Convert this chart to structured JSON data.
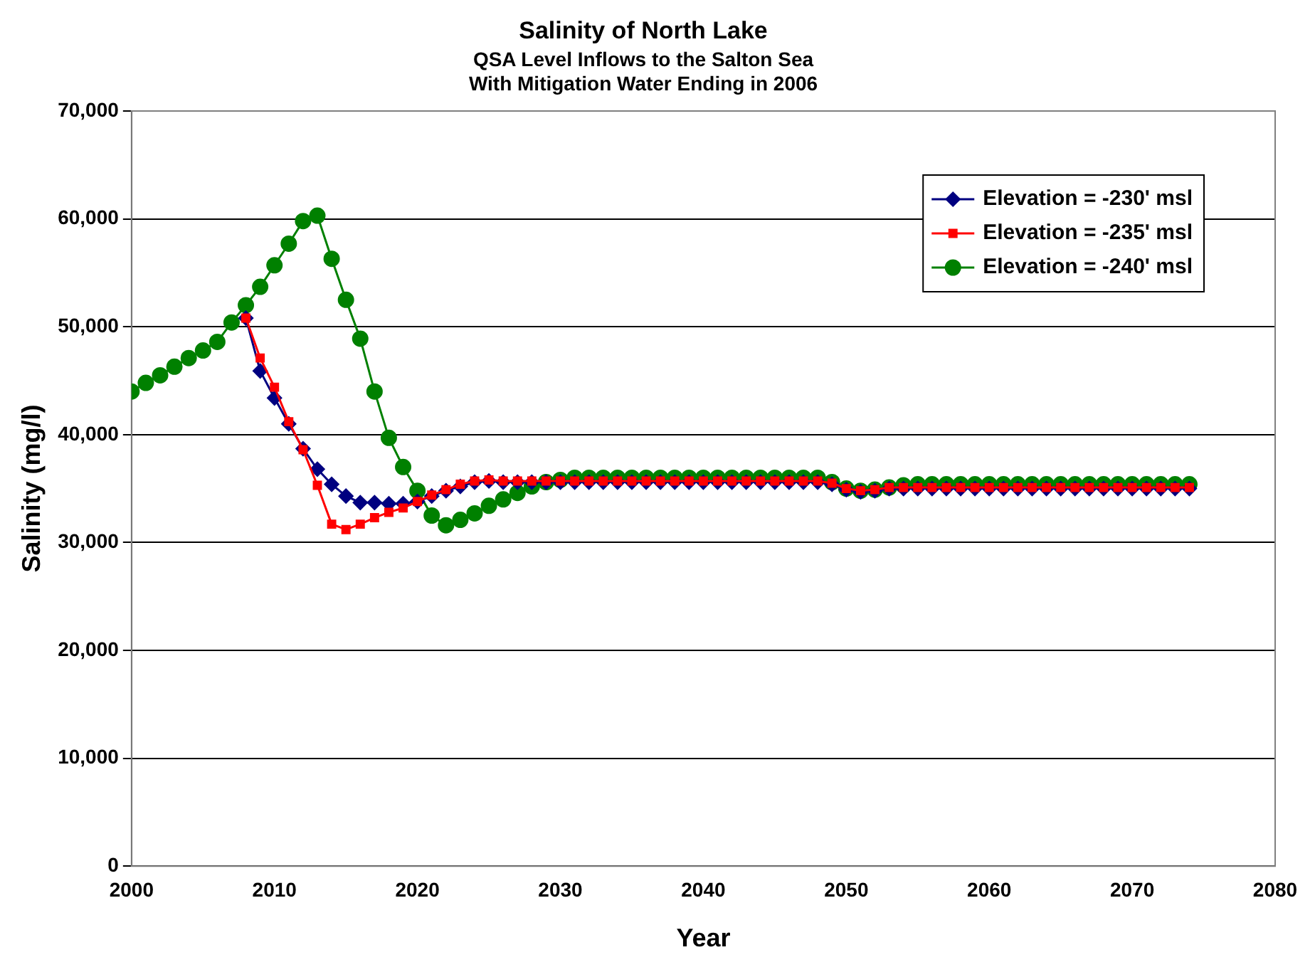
{
  "chart_data": {
    "type": "line",
    "title": "Salinity of North Lake",
    "subtitle": "QSA Level Inflows to the Salton Sea\nWith Mitigation Water Ending in 2006",
    "xlabel": "Year",
    "ylabel": "Salinity (mg/l)",
    "xlim": [
      2000,
      2080
    ],
    "xticks": [
      2000,
      2010,
      2020,
      2030,
      2040,
      2050,
      2060,
      2070,
      2080
    ],
    "ylim": [
      0,
      70000
    ],
    "yticks": [
      0,
      {
        "value": 10000,
        "label": "10,000"
      },
      {
        "value": 20000,
        "label": "20,000"
      },
      {
        "value": 30000,
        "label": "30,000"
      },
      {
        "value": 40000,
        "label": "40,000"
      },
      {
        "value": 50000,
        "label": "50,000"
      },
      {
        "value": 60000,
        "label": "60,000"
      },
      {
        "value": 70000,
        "label": "70,000"
      }
    ],
    "grid": "y",
    "legend": "top right",
    "series": [
      {
        "name": "Elevation = -230' msl",
        "color": "#000080",
        "marker": "diamond",
        "x": [
          2008,
          2009,
          2010,
          2011,
          2012,
          2013,
          2014,
          2015,
          2016,
          2017,
          2018,
          2019,
          2020,
          2021,
          2022,
          2023,
          2024,
          2025,
          2026,
          2027,
          2028,
          2029,
          2030,
          2031,
          2032,
          2033,
          2034,
          2035,
          2036,
          2037,
          2038,
          2039,
          2040,
          2041,
          2042,
          2043,
          2044,
          2045,
          2046,
          2047,
          2048,
          2049,
          2050,
          2051,
          2052,
          2053,
          2054,
          2055,
          2056,
          2057,
          2058,
          2059,
          2060,
          2061,
          2062,
          2063,
          2064,
          2065,
          2066,
          2067,
          2068,
          2069,
          2070,
          2071,
          2072,
          2073,
          2074
        ],
        "values": [
          50800,
          45900,
          43400,
          41000,
          38700,
          36800,
          35400,
          34300,
          33700,
          33700,
          33600,
          33600,
          33800,
          34300,
          34800,
          35200,
          35600,
          35700,
          35600,
          35600,
          35600,
          35600,
          35600,
          35600,
          35600,
          35600,
          35600,
          35600,
          35600,
          35600,
          35600,
          35600,
          35600,
          35600,
          35600,
          35600,
          35600,
          35600,
          35600,
          35600,
          35600,
          35400,
          34900,
          34700,
          34800,
          35000,
          35000,
          35000,
          35000,
          35000,
          35000,
          35000,
          35000,
          35000,
          35000,
          35000,
          35000,
          35000,
          35000,
          35000,
          35000,
          35000,
          35000,
          35000,
          35000,
          35000,
          35000
        ]
      },
      {
        "name": "Elevation = -235' msl",
        "color": "#ff0000",
        "marker": "square",
        "x": [
          2008,
          2009,
          2010,
          2011,
          2012,
          2013,
          2014,
          2015,
          2016,
          2017,
          2018,
          2019,
          2020,
          2021,
          2022,
          2023,
          2024,
          2025,
          2026,
          2027,
          2028,
          2029,
          2030,
          2031,
          2032,
          2033,
          2034,
          2035,
          2036,
          2037,
          2038,
          2039,
          2040,
          2041,
          2042,
          2043,
          2044,
          2045,
          2046,
          2047,
          2048,
          2049,
          2050,
          2051,
          2052,
          2053,
          2054,
          2055,
          2056,
          2057,
          2058,
          2059,
          2060,
          2061,
          2062,
          2063,
          2064,
          2065,
          2066,
          2067,
          2068,
          2069,
          2070,
          2071,
          2072,
          2073,
          2074
        ],
        "values": [
          50800,
          47100,
          44400,
          41200,
          38600,
          35300,
          31700,
          31200,
          31700,
          32300,
          32800,
          33200,
          33800,
          34400,
          34900,
          35400,
          35700,
          35800,
          35700,
          35700,
          35700,
          35700,
          35700,
          35700,
          35700,
          35700,
          35700,
          35700,
          35700,
          35700,
          35700,
          35700,
          35700,
          35700,
          35700,
          35700,
          35700,
          35700,
          35700,
          35700,
          35700,
          35500,
          35000,
          34800,
          34900,
          35100,
          35100,
          35100,
          35100,
          35100,
          35100,
          35100,
          35100,
          35100,
          35100,
          35100,
          35100,
          35100,
          35100,
          35100,
          35100,
          35100,
          35100,
          35100,
          35100,
          35100,
          35100
        ]
      },
      {
        "name": "Elevation = -240' msl",
        "color": "#008000",
        "marker": "circle",
        "x": [
          2000,
          2001,
          2002,
          2003,
          2004,
          2005,
          2006,
          2007,
          2008,
          2009,
          2010,
          2011,
          2012,
          2013,
          2014,
          2015,
          2016,
          2017,
          2018,
          2019,
          2020,
          2021,
          2022,
          2023,
          2024,
          2025,
          2026,
          2027,
          2028,
          2029,
          2030,
          2031,
          2032,
          2033,
          2034,
          2035,
          2036,
          2037,
          2038,
          2039,
          2040,
          2041,
          2042,
          2043,
          2044,
          2045,
          2046,
          2047,
          2048,
          2049,
          2050,
          2051,
          2052,
          2053,
          2054,
          2055,
          2056,
          2057,
          2058,
          2059,
          2060,
          2061,
          2062,
          2063,
          2064,
          2065,
          2066,
          2067,
          2068,
          2069,
          2070,
          2071,
          2072,
          2073,
          2074
        ],
        "values": [
          44000,
          44800,
          45500,
          46300,
          47100,
          47800,
          48600,
          50400,
          52000,
          53700,
          55700,
          57700,
          59800,
          60300,
          56300,
          52500,
          48900,
          44000,
          39700,
          37000,
          34800,
          32500,
          31600,
          32100,
          32700,
          33400,
          34000,
          34600,
          35200,
          35600,
          35800,
          36000,
          36000,
          36000,
          36000,
          36000,
          36000,
          36000,
          36000,
          36000,
          36000,
          36000,
          36000,
          36000,
          36000,
          36000,
          36000,
          36000,
          36000,
          35600,
          35000,
          34800,
          34900,
          35100,
          35300,
          35400,
          35400,
          35400,
          35400,
          35400,
          35400,
          35400,
          35400,
          35400,
          35400,
          35400,
          35400,
          35400,
          35400,
          35400,
          35400,
          35400,
          35400,
          35400,
          35400
        ]
      }
    ]
  }
}
